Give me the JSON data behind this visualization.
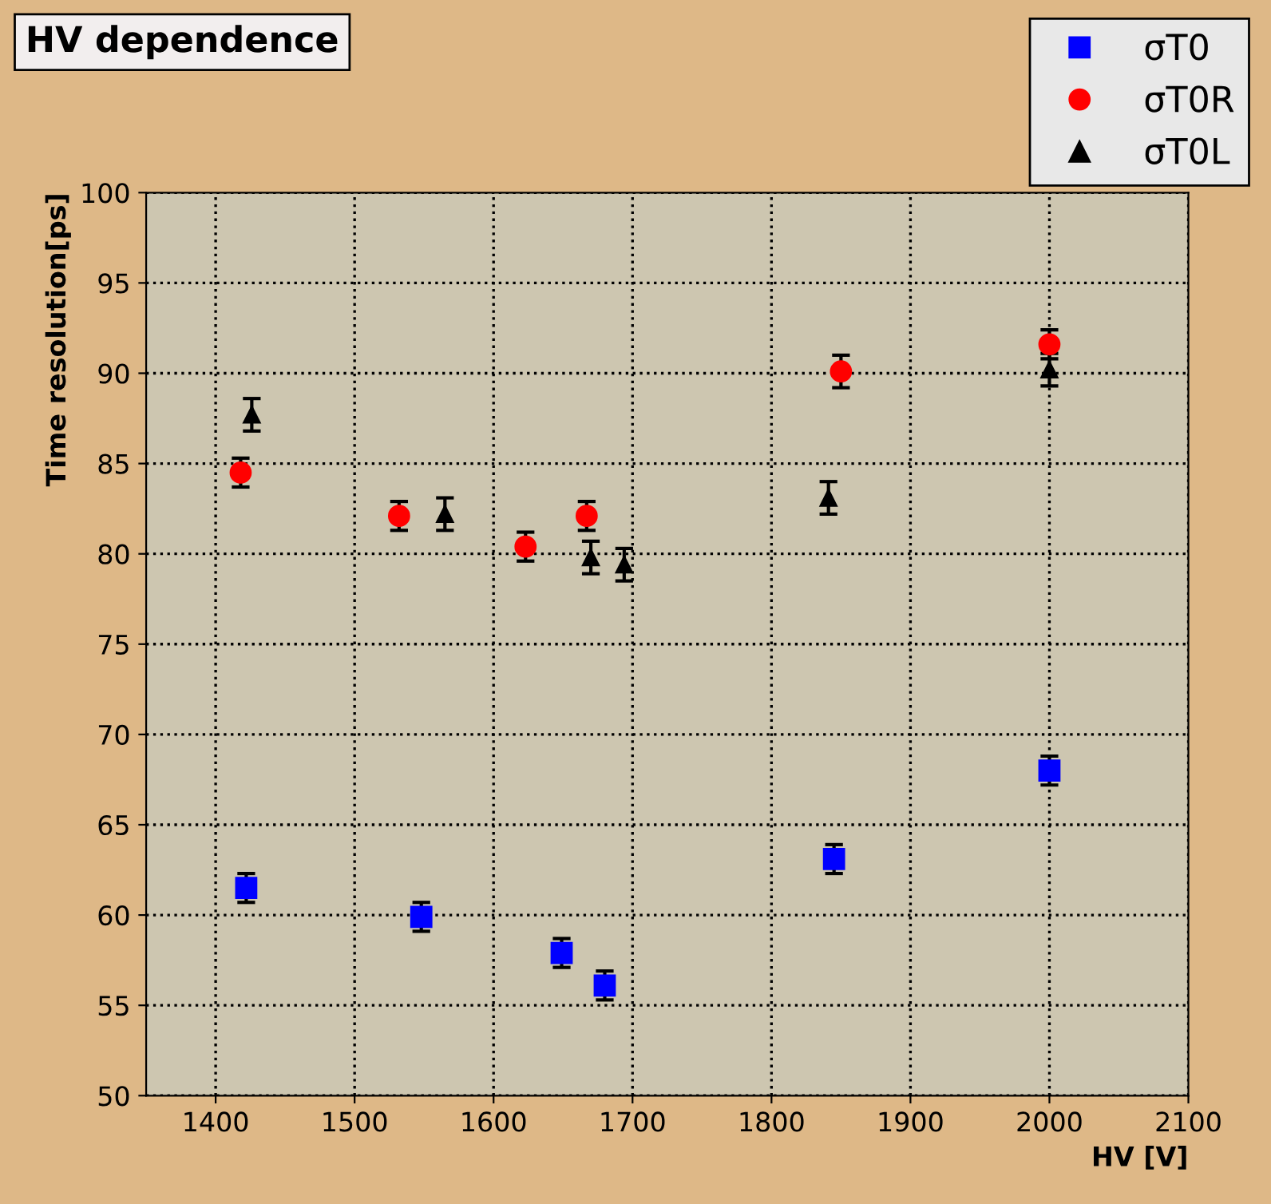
{
  "chart_data": {
    "type": "scatter",
    "title": "HV dependence",
    "xlabel": "HV [V]",
    "ylabel": "Time resolution[ps]",
    "xlim": [
      1350,
      2100
    ],
    "xticks": [
      1400,
      1500,
      1600,
      1700,
      1800,
      1900,
      2000,
      2100
    ],
    "ylim": [
      50,
      100
    ],
    "yticks": [
      50,
      55,
      60,
      65,
      70,
      75,
      80,
      85,
      90,
      95,
      100
    ],
    "grid": true,
    "legend": "top right",
    "series": [
      {
        "name": "σT0",
        "color": "#0000ff",
        "marker": "square",
        "x": [
          1422,
          1548,
          1649,
          1680,
          1845,
          2000
        ],
        "values": [
          61.5,
          59.9,
          57.9,
          56.1,
          63.1,
          68.0
        ],
        "errors": [
          0.8,
          0.8,
          0.8,
          0.8,
          0.8,
          0.8
        ]
      },
      {
        "name": "σT0R",
        "color": "#ff0000",
        "marker": "circle",
        "x": [
          1418,
          1532,
          1623,
          1667,
          1850,
          2000
        ],
        "values": [
          84.5,
          82.1,
          80.4,
          82.1,
          90.1,
          91.6
        ],
        "errors": [
          0.8,
          0.8,
          0.8,
          0.8,
          0.9,
          0.8
        ]
      },
      {
        "name": "σT0L",
        "color": "#000000",
        "marker": "triangle",
        "x": [
          1426,
          1565,
          1670,
          1694,
          1841,
          2000
        ],
        "values": [
          87.7,
          82.2,
          79.8,
          79.4,
          83.1,
          90.2
        ],
        "errors": [
          0.9,
          0.9,
          0.9,
          0.9,
          0.9,
          0.9
        ]
      }
    ]
  }
}
